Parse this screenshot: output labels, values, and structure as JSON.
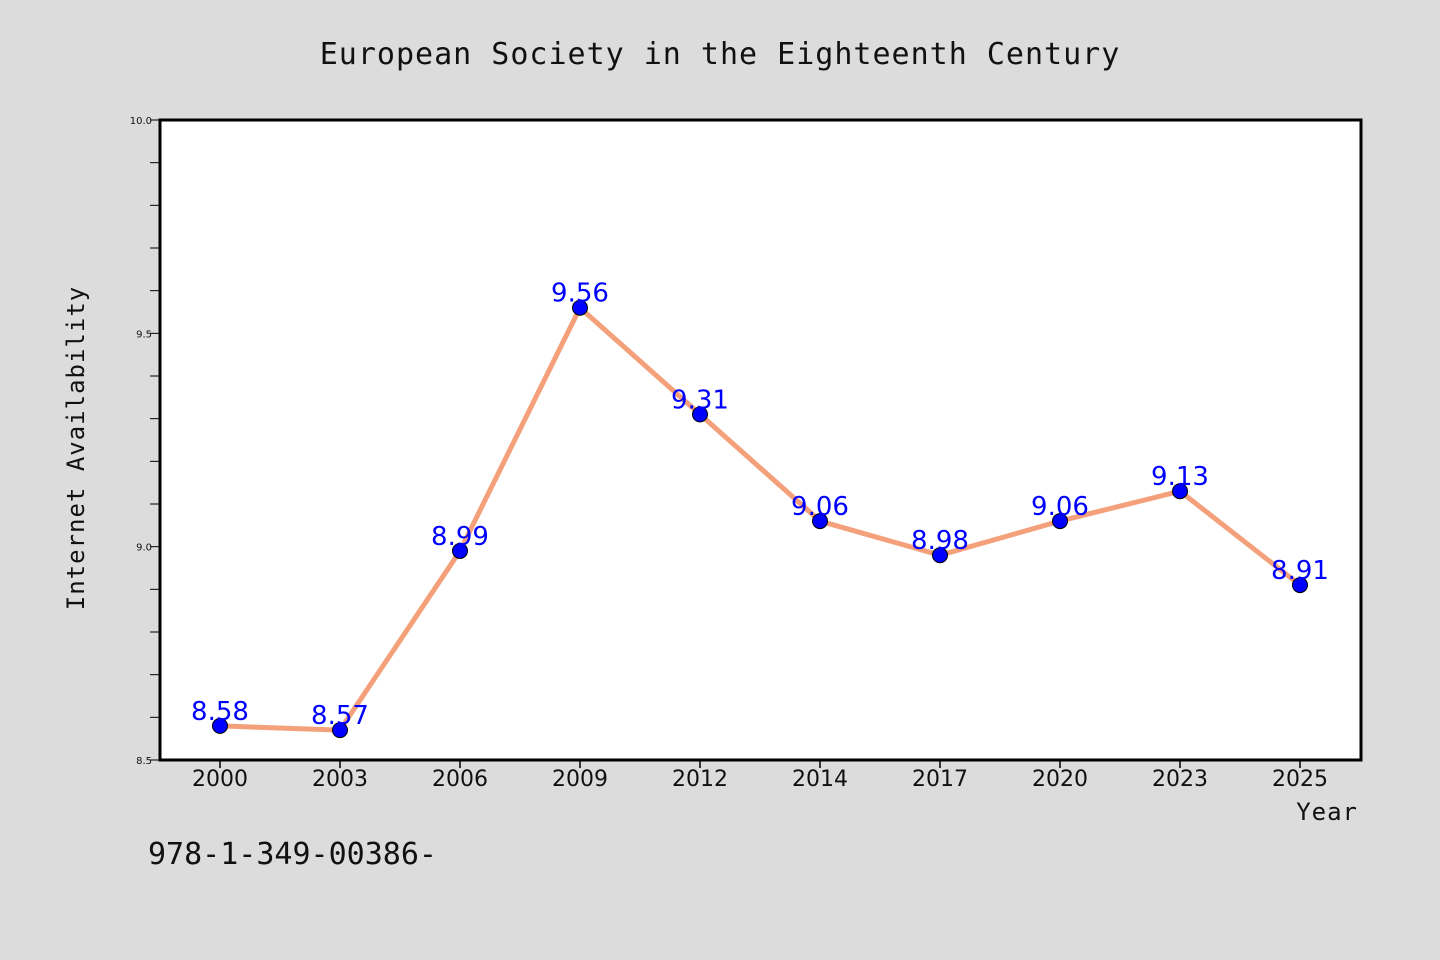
{
  "footer_code": "978-1-349-00386-",
  "colors": {
    "background": "#dcdcdc",
    "plot_background": "#ffffff",
    "line": "#f4a07a",
    "marker": "#0000ff",
    "data_label": "#0000ff"
  },
  "chart_data": {
    "type": "line",
    "title": "European Society in the Eighteenth Century",
    "xlabel": "Year",
    "ylabel": "Internet Availability",
    "categories": [
      "2000",
      "2003",
      "2006",
      "2009",
      "2012",
      "2014",
      "2017",
      "2020",
      "2023",
      "2025"
    ],
    "series": [
      {
        "values": [
          8.58,
          8.57,
          8.99,
          9.56,
          9.31,
          9.06,
          8.98,
          9.06,
          9.13,
          8.91
        ]
      }
    ],
    "data_labels": [
      "8.58",
      "8.57",
      "8.99",
      "9.56",
      "9.31",
      "9.06",
      "8.98",
      "9.06",
      "9.13",
      "8.91"
    ],
    "ylim": [
      8.5,
      10.0
    ],
    "yticks": [
      "8.5",
      "9.0",
      "9.5",
      "10.0"
    ],
    "grid": false,
    "legend": "none"
  }
}
